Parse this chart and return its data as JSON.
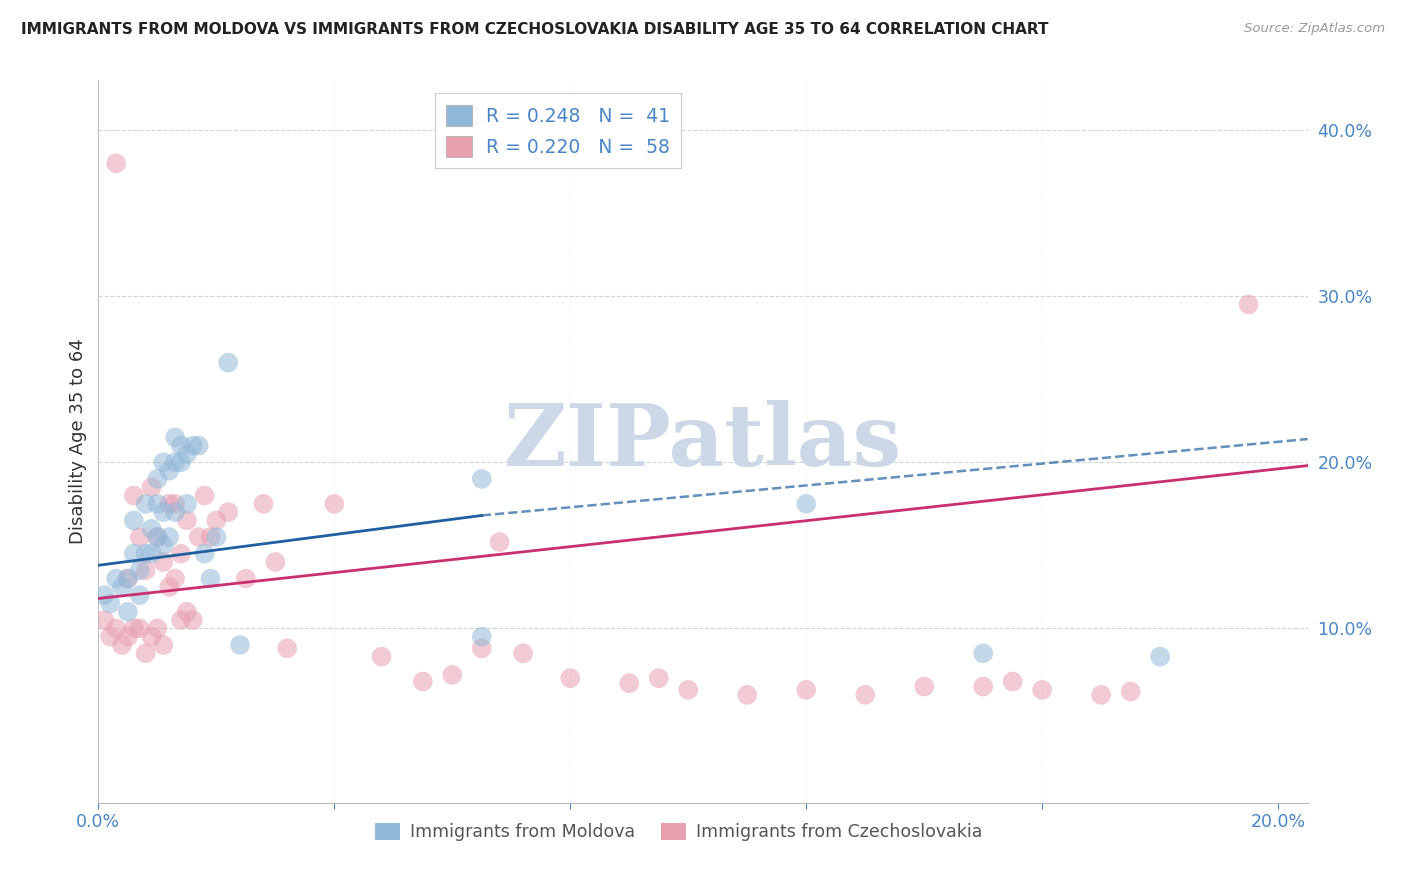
{
  "title": "IMMIGRANTS FROM MOLDOVA VS IMMIGRANTS FROM CZECHOSLOVAKIA DISABILITY AGE 35 TO 64 CORRELATION CHART",
  "source": "Source: ZipAtlas.com",
  "ylabel": "Disability Age 35 to 64",
  "xlim": [
    0.0,
    0.205
  ],
  "ylim": [
    -0.005,
    0.43
  ],
  "color_moldova": "#92b8d8",
  "color_czech": "#e8a0b0",
  "color_trendline_moldova": "#2060a0",
  "color_trendline_czech": "#c83070",
  "watermark_text": "ZIPatlas",
  "watermark_color": "#ccd8e8",
  "background_color": "#ffffff",
  "grid_color": "#c8c8c8",
  "legend_label1": "R = 0.248   N =  41",
  "legend_label2": "R = 0.220   N =  58",
  "legend_label_bottom1": "Immigrants from Moldova",
  "legend_label_bottom2": "Immigrants from Czechoslovakia",
  "moldova_x": [
    0.001,
    0.002,
    0.003,
    0.004,
    0.005,
    0.005,
    0.006,
    0.006,
    0.007,
    0.007,
    0.008,
    0.008,
    0.009,
    0.009,
    0.01,
    0.01,
    0.01,
    0.011,
    0.011,
    0.011,
    0.012,
    0.012,
    0.013,
    0.013,
    0.013,
    0.014,
    0.014,
    0.015,
    0.015,
    0.016,
    0.017,
    0.018,
    0.019,
    0.02,
    0.022,
    0.024,
    0.065,
    0.065,
    0.12,
    0.15,
    0.18
  ],
  "moldova_y": [
    0.12,
    0.115,
    0.13,
    0.125,
    0.13,
    0.11,
    0.145,
    0.165,
    0.12,
    0.135,
    0.145,
    0.175,
    0.145,
    0.16,
    0.155,
    0.175,
    0.19,
    0.15,
    0.17,
    0.2,
    0.155,
    0.195,
    0.17,
    0.2,
    0.215,
    0.2,
    0.21,
    0.175,
    0.205,
    0.21,
    0.21,
    0.145,
    0.13,
    0.155,
    0.26,
    0.09,
    0.19,
    0.095,
    0.175,
    0.085,
    0.083
  ],
  "czech_x": [
    0.001,
    0.002,
    0.003,
    0.003,
    0.004,
    0.005,
    0.005,
    0.006,
    0.006,
    0.007,
    0.007,
    0.008,
    0.008,
    0.009,
    0.009,
    0.01,
    0.01,
    0.011,
    0.011,
    0.012,
    0.012,
    0.013,
    0.013,
    0.014,
    0.014,
    0.015,
    0.015,
    0.016,
    0.017,
    0.018,
    0.019,
    0.02,
    0.022,
    0.025,
    0.028,
    0.03,
    0.032,
    0.04,
    0.048,
    0.055,
    0.06,
    0.065,
    0.068,
    0.072,
    0.08,
    0.09,
    0.095,
    0.1,
    0.11,
    0.12,
    0.13,
    0.14,
    0.15,
    0.155,
    0.16,
    0.17,
    0.175,
    0.195
  ],
  "czech_y": [
    0.105,
    0.095,
    0.1,
    0.38,
    0.09,
    0.095,
    0.13,
    0.1,
    0.18,
    0.1,
    0.155,
    0.085,
    0.135,
    0.095,
    0.185,
    0.1,
    0.155,
    0.09,
    0.14,
    0.125,
    0.175,
    0.13,
    0.175,
    0.145,
    0.105,
    0.11,
    0.165,
    0.105,
    0.155,
    0.18,
    0.155,
    0.165,
    0.17,
    0.13,
    0.175,
    0.14,
    0.088,
    0.175,
    0.083,
    0.068,
    0.072,
    0.088,
    0.152,
    0.085,
    0.07,
    0.067,
    0.07,
    0.063,
    0.06,
    0.063,
    0.06,
    0.065,
    0.065,
    0.068,
    0.063,
    0.06,
    0.062,
    0.295
  ],
  "trendline_moldova_x0": 0.0,
  "trendline_moldova_y0": 0.138,
  "trendline_moldova_x1": 0.065,
  "trendline_moldova_y1": 0.168,
  "trendline_moldova_dash_x0": 0.065,
  "trendline_moldova_dash_y0": 0.168,
  "trendline_moldova_dash_x1": 0.205,
  "trendline_moldova_dash_y1": 0.214,
  "trendline_czech_x0": 0.0,
  "trendline_czech_y0": 0.118,
  "trendline_czech_x1": 0.205,
  "trendline_czech_y1": 0.198
}
